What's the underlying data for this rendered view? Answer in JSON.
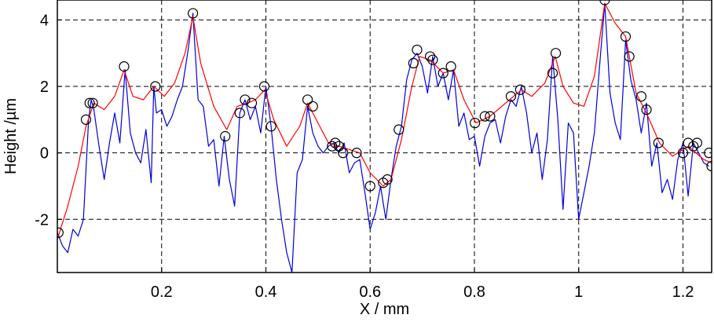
{
  "chart_data": {
    "type": "line",
    "title": "",
    "xlabel": "X / mm",
    "ylabel": "Height /µm",
    "xlim": [
      0.0,
      1.255
    ],
    "ylim": [
      -3.6,
      4.6
    ],
    "xticks": [
      0.2,
      0.4,
      0.6,
      0.8,
      1.0,
      1.2
    ],
    "xtick_labels": [
      "0.2",
      "0.4",
      "0.6",
      "0.8",
      "1",
      "1.2"
    ],
    "yticks": [
      -2,
      0,
      2,
      4
    ],
    "ytick_labels": [
      "-2",
      "0",
      "2",
      "4"
    ],
    "grid": true,
    "grid_style": "dashed",
    "colors": {
      "profile": "#0000dd",
      "envelope": "#ff0000",
      "markers": "#000000"
    },
    "series": [
      {
        "kind": "profile-line",
        "color": "#0000dd",
        "x": [
          0.0,
          0.01,
          0.02,
          0.03,
          0.04,
          0.05,
          0.06,
          0.065,
          0.07,
          0.08,
          0.09,
          0.1,
          0.11,
          0.12,
          0.13,
          0.14,
          0.15,
          0.16,
          0.17,
          0.18,
          0.185,
          0.19,
          0.2,
          0.21,
          0.22,
          0.23,
          0.24,
          0.25,
          0.26,
          0.27,
          0.28,
          0.29,
          0.3,
          0.31,
          0.32,
          0.33,
          0.34,
          0.35,
          0.36,
          0.37,
          0.38,
          0.39,
          0.4,
          0.41,
          0.42,
          0.43,
          0.44,
          0.45,
          0.46,
          0.47,
          0.48,
          0.49,
          0.5,
          0.51,
          0.52,
          0.53,
          0.54,
          0.55,
          0.56,
          0.57,
          0.58,
          0.59,
          0.6,
          0.61,
          0.62,
          0.63,
          0.64,
          0.65,
          0.66,
          0.67,
          0.68,
          0.69,
          0.7,
          0.71,
          0.72,
          0.73,
          0.74,
          0.75,
          0.76,
          0.77,
          0.78,
          0.79,
          0.8,
          0.81,
          0.82,
          0.83,
          0.84,
          0.85,
          0.86,
          0.87,
          0.88,
          0.89,
          0.9,
          0.91,
          0.92,
          0.93,
          0.94,
          0.95,
          0.96,
          0.97,
          0.98,
          0.99,
          1.0,
          1.01,
          1.02,
          1.03,
          1.04,
          1.05,
          1.06,
          1.07,
          1.08,
          1.09,
          1.1,
          1.11,
          1.12,
          1.13,
          1.14,
          1.15,
          1.16,
          1.17,
          1.18,
          1.19,
          1.2,
          1.21,
          1.22,
          1.23,
          1.24,
          1.25
        ],
        "y": [
          -2.4,
          -2.8,
          -3.0,
          -2.3,
          -2.5,
          -2.0,
          1.0,
          1.6,
          1.3,
          0.2,
          -0.8,
          0.3,
          1.2,
          0.3,
          2.5,
          0.6,
          0.0,
          -0.3,
          0.7,
          -0.9,
          2.0,
          1.2,
          1.3,
          0.8,
          1.1,
          1.6,
          2.0,
          3.0,
          4.2,
          1.6,
          1.4,
          0.2,
          0.4,
          -1.0,
          0.5,
          -0.8,
          -1.6,
          1.2,
          1.6,
          1.0,
          1.4,
          0.6,
          2.0,
          0.8,
          -0.8,
          -2.0,
          -3.0,
          -3.6,
          -0.6,
          -0.2,
          1.4,
          0.6,
          0.2,
          0.0,
          0.2,
          0.3,
          0.0,
          0.3,
          -0.6,
          -0.3,
          -0.2,
          -1.2,
          -2.3,
          -1.8,
          -1.0,
          -2.0,
          -0.8,
          0.2,
          0.8,
          2.2,
          2.8,
          3.0,
          2.6,
          1.8,
          2.9,
          2.0,
          2.4,
          1.6,
          2.5,
          0.8,
          1.2,
          0.4,
          0.5,
          -0.4,
          0.5,
          0.9,
          1.0,
          0.3,
          1.1,
          1.6,
          1.4,
          2.0,
          1.2,
          0.0,
          0.6,
          -0.8,
          0.4,
          2.9,
          1.0,
          -1.7,
          0.9,
          0.6,
          -2.0,
          -1.2,
          -0.4,
          0.6,
          2.6,
          4.5,
          1.8,
          0.9,
          0.4,
          3.4,
          2.2,
          1.6,
          0.6,
          1.5,
          -0.4,
          0.3,
          -1.2,
          -0.8,
          -1.4,
          -0.2,
          0.3,
          -1.3,
          0.3,
          0.0,
          -0.3,
          -0.4
        ]
      },
      {
        "kind": "envelope-curve",
        "color": "#ff0000",
        "x": [
          0.0,
          0.02,
          0.04,
          0.055,
          0.07,
          0.09,
          0.11,
          0.128,
          0.145,
          0.165,
          0.185,
          0.205,
          0.225,
          0.245,
          0.26,
          0.275,
          0.3,
          0.325,
          0.345,
          0.365,
          0.38,
          0.398,
          0.415,
          0.44,
          0.465,
          0.48,
          0.5,
          0.52,
          0.54,
          0.56,
          0.58,
          0.6,
          0.625,
          0.64,
          0.66,
          0.68,
          0.695,
          0.715,
          0.74,
          0.76,
          0.78,
          0.803,
          0.83,
          0.86,
          0.89,
          0.91,
          0.935,
          0.955,
          0.97,
          0.99,
          1.01,
          1.03,
          1.05,
          1.07,
          1.09,
          1.11,
          1.13,
          1.155,
          1.18,
          1.21,
          1.24,
          1.255
        ],
        "y": [
          -2.6,
          -1.6,
          -0.4,
          0.8,
          1.5,
          1.3,
          1.7,
          2.5,
          1.7,
          1.6,
          2.0,
          1.7,
          2.1,
          3.0,
          4.1,
          2.7,
          1.4,
          0.7,
          1.4,
          1.5,
          1.6,
          1.9,
          1.0,
          0.2,
          0.8,
          1.5,
          0.9,
          0.3,
          0.2,
          0.1,
          0.0,
          -0.6,
          -1.0,
          -0.8,
          0.4,
          2.0,
          2.9,
          2.8,
          2.4,
          2.5,
          1.6,
          0.9,
          1.1,
          1.5,
          1.9,
          1.7,
          2.1,
          2.9,
          2.0,
          1.5,
          1.4,
          2.3,
          4.5,
          3.9,
          3.5,
          1.8,
          1.2,
          0.3,
          -0.1,
          0.2,
          -0.2,
          -0.3
        ]
      },
      {
        "kind": "circle-markers",
        "color": "#000000",
        "x": [
          0.002,
          0.055,
          0.062,
          0.068,
          0.128,
          0.188,
          0.26,
          0.322,
          0.35,
          0.36,
          0.373,
          0.397,
          0.41,
          0.48,
          0.49,
          0.527,
          0.533,
          0.54,
          0.548,
          0.574,
          0.6,
          0.625,
          0.633,
          0.655,
          0.683,
          0.69,
          0.715,
          0.72,
          0.74,
          0.755,
          0.801,
          0.82,
          0.83,
          0.87,
          0.888,
          0.95,
          0.956,
          1.05,
          1.09,
          1.097,
          1.12,
          1.13,
          1.153,
          1.2,
          1.21,
          1.22,
          1.227,
          1.25,
          1.255
        ],
        "y": [
          -2.4,
          1.0,
          1.5,
          1.5,
          2.6,
          2.0,
          4.2,
          0.5,
          1.2,
          1.6,
          1.5,
          2.0,
          0.8,
          1.6,
          1.4,
          0.2,
          0.3,
          0.2,
          0.0,
          0.0,
          -1.0,
          -0.9,
          -0.8,
          0.7,
          2.7,
          3.1,
          2.9,
          2.8,
          2.4,
          2.6,
          0.9,
          1.1,
          1.1,
          1.7,
          1.9,
          2.4,
          3.0,
          4.6,
          3.5,
          2.9,
          1.7,
          1.3,
          0.3,
          0.0,
          0.3,
          0.2,
          0.3,
          0.0,
          -0.4
        ]
      }
    ]
  }
}
